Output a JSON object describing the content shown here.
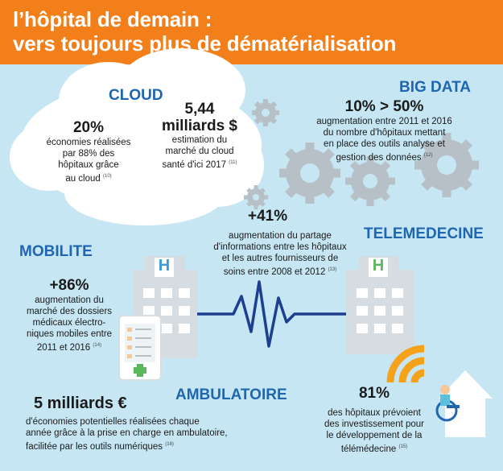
{
  "header": {
    "line1": "l’hôpital de demain :",
    "line2": "vers toujours plus de dématérialisation"
  },
  "cloud": {
    "title": "CLOUD",
    "stat1": {
      "value": "20%",
      "text_lines": [
        "économies réalisées",
        "par 88% des",
        "hôpitaux grâce",
        "au cloud"
      ],
      "ref": "(10)"
    },
    "stat2": {
      "value_line1": "5,44",
      "value_line2": "milliards $",
      "text_lines": [
        "estimation du",
        "marché du cloud",
        "santé d'ici 2017"
      ],
      "ref": "(11)"
    }
  },
  "big_data": {
    "title": "BIG DATA",
    "value": "10% > 50%",
    "text_lines": [
      "augmentation entre 2011 et 2016",
      "du nombre d'hôpitaux mettant",
      "en place des outils analyse et",
      "gestion des données"
    ],
    "ref": "(12)"
  },
  "sharing": {
    "value": "+41%",
    "text_lines": [
      "augmentation du partage",
      "d'informations entre les hôpitaux",
      "et les autres fournisseurs de",
      "soins entre 2008 et 2012"
    ],
    "ref": "(13)"
  },
  "mobilite": {
    "title": "MOBILITE",
    "value": "+86%",
    "text_lines": [
      "augmentation du",
      "marché des dossiers",
      "médicaux électro-",
      "niques mobiles entre",
      "2011 et 2016"
    ],
    "ref": "(14)"
  },
  "telemedecine": {
    "title": "TELEMEDECINE",
    "value": "81%",
    "text_lines": [
      "des hôpitaux prévoient",
      "des investissement pour",
      "le développement de la",
      "télémédecine"
    ],
    "ref": "(15)"
  },
  "ambulatoire": {
    "title": "AMBULATOIRE",
    "value": "5 milliards €",
    "text_lines": [
      "d'économies potentielles réalisées chaque",
      "année grâce à la prise en charge en ambulatoire,",
      "facilitée par les outils numériques"
    ],
    "ref": "(16)"
  },
  "icons": {
    "hospital_letter": "H",
    "colors": {
      "orange": "#f27f1a",
      "blue": "#1f66b0",
      "background": "#c7e6f3",
      "gear": "#b7c0c6",
      "building": "#d6dde2",
      "ecg_line": "#1c3f8f"
    }
  }
}
